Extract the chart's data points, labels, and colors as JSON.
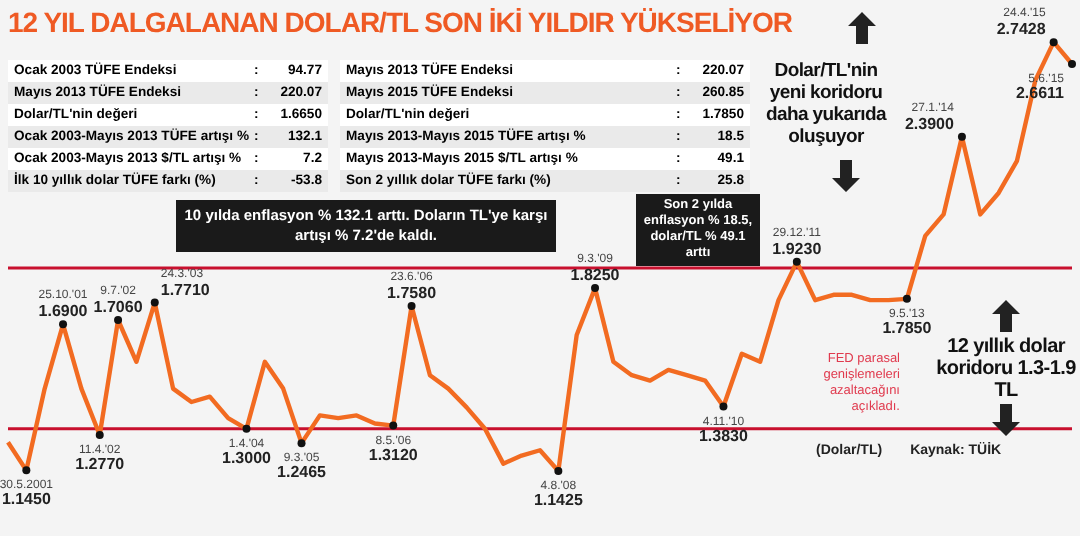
{
  "chart_data": {
    "type": "line",
    "title": "12 YIL DALGALANAN DOLAR/TL SON İKİ YILDIR YÜKSELİYOR",
    "ylabel": "(Dolar/TL)",
    "categories": [
      null,
      null,
      null,
      null,
      null,
      null,
      null,
      null,
      null,
      null,
      null,
      null,
      null,
      null,
      null,
      null,
      null,
      null,
      null,
      null,
      null,
      null,
      null,
      null,
      null,
      null,
      null,
      null,
      null,
      null,
      null,
      null,
      null,
      null,
      null,
      null,
      null,
      null,
      null,
      null,
      null,
      null,
      null,
      null,
      null,
      null,
      null,
      null,
      null,
      null,
      null,
      null,
      null,
      null,
      null,
      null,
      null,
      null,
      null
    ],
    "series": [
      {
        "color": "#f26b21",
        "values": [
          1.25,
          1.145,
          1.45,
          1.69,
          1.45,
          1.277,
          1.706,
          1.55,
          1.771,
          1.45,
          1.4,
          1.42,
          1.34,
          1.3,
          1.55,
          1.45,
          1.2465,
          1.35,
          1.34,
          1.35,
          1.32,
          1.312,
          1.758,
          1.5,
          1.45,
          1.38,
          1.3,
          1.17,
          1.2,
          1.22,
          1.1425,
          1.65,
          1.825,
          1.55,
          1.5,
          1.48,
          1.52,
          1.5,
          1.48,
          1.383,
          1.58,
          1.55,
          1.78,
          1.923,
          1.78,
          1.8,
          1.8,
          1.78,
          1.78,
          1.785,
          2.02,
          2.1,
          2.39,
          2.1,
          2.18,
          2.3,
          2.6,
          2.7428,
          2.6611
        ],
        "value_labels": [
          null,
          "1.1450",
          null,
          "1.6900",
          null,
          "1.2770",
          "1.7060",
          null,
          "1.7710",
          null,
          null,
          null,
          null,
          "1.3000",
          null,
          null,
          "1.2465",
          null,
          null,
          null,
          null,
          "1.3120",
          "1.7580",
          null,
          null,
          null,
          null,
          null,
          null,
          null,
          "1.1425",
          null,
          "1.8250",
          null,
          null,
          null,
          null,
          null,
          null,
          "1.3830",
          null,
          null,
          null,
          "1.9230",
          null,
          null,
          null,
          null,
          null,
          "1.7850",
          null,
          null,
          "2.3900",
          null,
          null,
          null,
          null,
          "2.7428",
          "2.6611"
        ]
      }
    ],
    "ylim": [
      0.9,
      2.9
    ],
    "ref_lines": [
      {
        "axis": "y",
        "value": 1.3,
        "color": "#c8102e"
      },
      {
        "axis": "y",
        "value": 1.9,
        "color": "#c8102e"
      }
    ],
    "annotations": [
      "Ocak 2003 TÜFE Endeksi : 94.77",
      "Mayıs 2013 TÜFE Endeksi : 220.07",
      "Dolar/TL'nin değeri : 1.6650",
      "Ocak 2003-Mayıs 2013 TÜFE artışı % : 132.1",
      "Ocak 2003-Mayıs 2013 $/TL artışı % : 7.2",
      "İlk 10 yıllık dolar TÜFE farkı (%) : -53.8",
      "Mayıs 2013 TÜFE Endeksi : 220.07",
      "Mayıs 2015 TÜFE Endeksi : 260.85",
      "Dolar/TL'nin değeri : 1.7850",
      "Mayıs 2013-Mayıs 2015 TÜFE artışı % : 18.5",
      "Mayıs 2013-Mayıs 2015 $/TL artışı % : 49.1",
      "Son 2 yıllık dolar TÜFE farkı (%) : 25.8",
      "10 yılda enflasyon % 132.1 arttı. Doların TL'ye karşı artışı % 7.2'de kaldı.",
      "Dolar/TL'nin yeni koridoru daha yukarıda oluşuyor",
      "Son 2 yılda enflasyon % 18.5, dolar/TL % 49.1 arttı",
      "12 yıllık dolar koridoru 1.3-1.9 TL",
      "FED parasal genişlemeleri azaltacağını açıkladı.",
      "Kaynak: TÜİK",
      "30.5.2001",
      "25.10.'01",
      "11.4.'02",
      "9.7.'02",
      "24.3.'03",
      "1.4.'04",
      "9.3.'05",
      "8.5.'06",
      "23.6.'06",
      "4.8.'08",
      "9.3.'09",
      "4.11.'10",
      "29.12.'11",
      "9.5.'13",
      "27.1.'14",
      "24.4.'15",
      "5.6.'15"
    ]
  }
}
